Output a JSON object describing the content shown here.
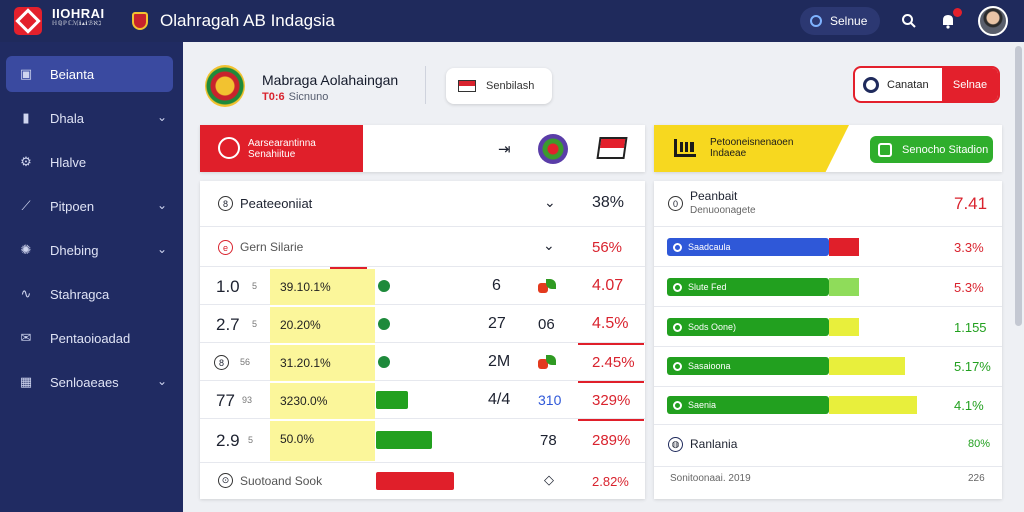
{
  "topbar": {
    "logo_text": "IIOHRAI",
    "logo_sub": "ℍℚℙℂℳℹ▴ℹℬℵℷ",
    "title": "Olahragah AB Indagsia",
    "search_label": "Selnue"
  },
  "sidebar": {
    "items": [
      {
        "label": "Beianta",
        "icon": "dashboard-icon",
        "active": true
      },
      {
        "label": "Dhala",
        "icon": "book-icon",
        "chevron": true
      },
      {
        "label": "Hlalve",
        "icon": "gear-icon"
      },
      {
        "label": "Pitpoen",
        "icon": "chart-icon",
        "chevron": true
      },
      {
        "label": "Dhebing",
        "icon": "settings-icon",
        "chevron": true
      },
      {
        "label": "Stahragca",
        "icon": "wave-icon"
      },
      {
        "label": "Pentaoioadad",
        "icon": "mail-icon"
      },
      {
        "label": "Senloaeaes",
        "icon": "calendar-icon",
        "chevron": true
      }
    ]
  },
  "header": {
    "club_name": "Mabraga Aolahaingan",
    "club_sub_prefix": "T0:6",
    "club_sub": "Sicnuno",
    "btn_sembilash": "Senbilash",
    "btn_canatan": "Canatan",
    "btn_selnae": "Selnae"
  },
  "banner_left": {
    "line1": "Aarsearantinna",
    "line2": "Senahiitue"
  },
  "banner_right": {
    "line1": "Petooneisnenaoen",
    "line2": "Indaeae",
    "button": "Senocho Sitadion"
  },
  "left_table": {
    "header": {
      "title": "Peateeoniiat",
      "value": "38%"
    },
    "sub": {
      "title": "Gern Silarie",
      "value": "56%"
    },
    "rows": [
      {
        "score": "1.0",
        "sub": "5",
        "ybox": "39.10.1%",
        "bar": "dot",
        "mid": "6",
        "mid2": "",
        "icon": "leaf",
        "value": "4.07"
      },
      {
        "score": "2.7",
        "sub": "5",
        "ybox": "20.20%",
        "bar": "dot",
        "mid": "27",
        "mid2": "06",
        "icon": "",
        "value": "4.5%"
      },
      {
        "score": "8",
        "sub": "56",
        "ybox": "31.20.1%",
        "bar": "dot",
        "mid": "2M",
        "mid2": "",
        "icon": "leaf",
        "value": "2.45%"
      },
      {
        "score": "77",
        "sub": "93",
        "ybox": "3230.0%",
        "bar": "green-short",
        "mid": "4/4",
        "mid2": "310",
        "icon": "",
        "value": "329%"
      },
      {
        "score": "2.9",
        "sub": "5",
        "ybox": "50.0%",
        "bar": "green-long",
        "mid": "",
        "mid2": "78",
        "icon": "",
        "value": "289%"
      }
    ],
    "footer": {
      "title": "Suotoand Sook",
      "value": "2.82%"
    }
  },
  "right_table": {
    "header": {
      "title": "Peanbait",
      "sub": "Denuoonagete",
      "value": "7.41"
    },
    "rows": [
      {
        "label": "Saadcaula",
        "color": "#2f58d8",
        "tail": "#e01f2a",
        "value": "3.3%",
        "value_color": "#d9232e"
      },
      {
        "label": "Slute Fed",
        "color": "#22a01f",
        "tail": "#8fdc5a",
        "value": "5.3%",
        "value_color": "#d9232e"
      },
      {
        "label": "Sods Oone)",
        "color": "#22a01f",
        "tail": "#e8ef3c",
        "value": "1.155",
        "value_color": "#22a01f"
      },
      {
        "label": "Sasaioona",
        "color": "#22a01f",
        "tail": "#e8ef3c",
        "value": "5.17%",
        "value_color": "#22a01f"
      },
      {
        "label": "Saenia",
        "color": "#22a01f",
        "tail": "#e8ef3c",
        "value": "4.1%",
        "value_color": "#22a01f"
      }
    ],
    "ranking": {
      "title": "Ranlania",
      "value": "80%"
    },
    "footer": {
      "title": "Sonitoonaai. 2019",
      "value": "226"
    }
  },
  "colors": {
    "navy": "#1f2a5c",
    "red": "#e01f2a",
    "green": "#22a01f",
    "yellow": "#f7d81f"
  }
}
